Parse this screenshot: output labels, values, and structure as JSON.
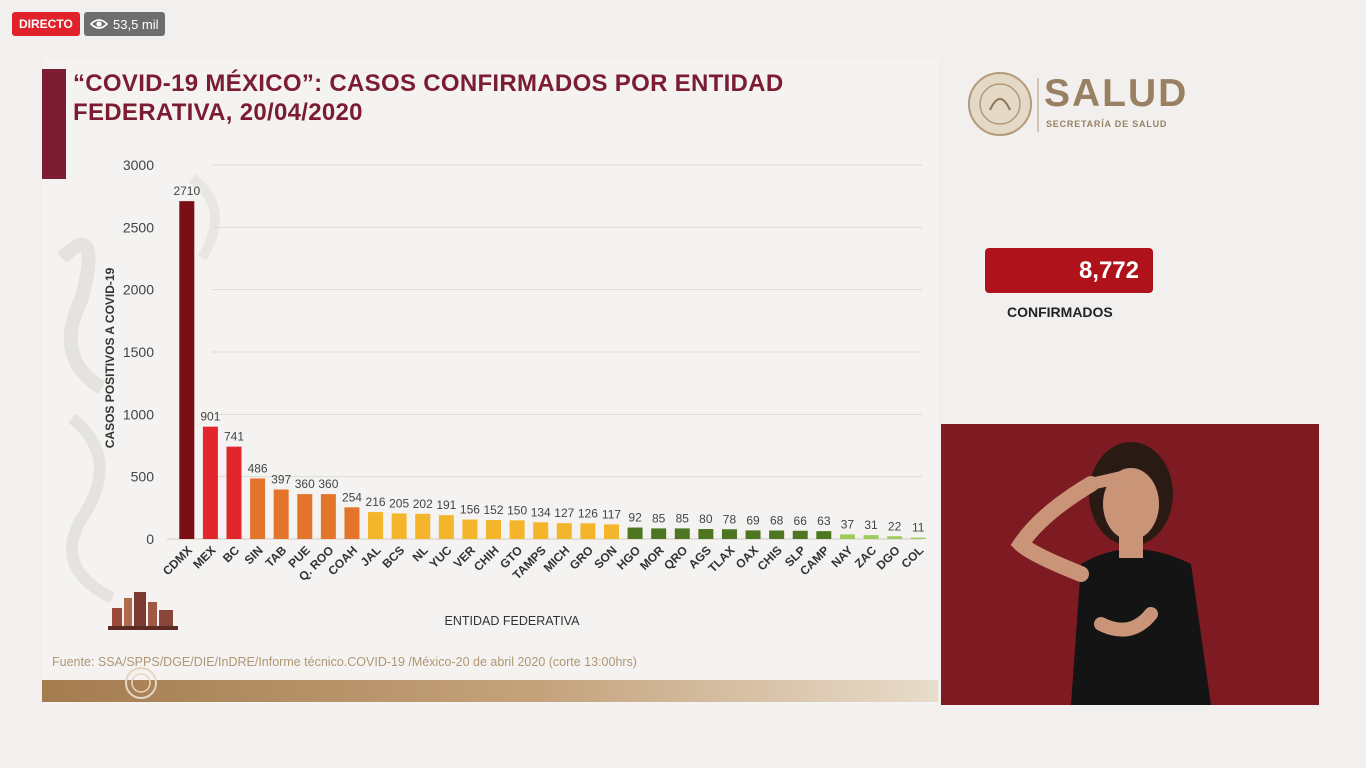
{
  "live": {
    "badge": "DIRECTO",
    "viewers": "53,5 mil"
  },
  "slide": {
    "title_line1": "“COVID-19 MÉXICO”: CASOS CONFIRMADOS POR ENTIDAD",
    "title_line2": "FEDERATIVA, 20/04/2020",
    "source": "Fuente: SSA/SPPS/DGE/DIE/InDRE/Informe técnico.COVID-19 /México-20 de abril 2020 (corte 13:00hrs)"
  },
  "logo": {
    "name": "SALUD",
    "subtitle": "SECRETARÍA DE SALUD"
  },
  "summary": {
    "total": "8,772",
    "label": "CONFIRMADOS"
  },
  "chart_data": {
    "type": "bar",
    "xlabel": "ENTIDAD FEDERATIVA",
    "ylabel": "CASOS POSITIVOS A COVID-19",
    "ylim": [
      0,
      3000
    ],
    "yticks": [
      0,
      500,
      1000,
      1500,
      2000,
      2500,
      3000
    ],
    "grid": true,
    "categories": [
      "CDMX",
      "MEX",
      "BC",
      "SIN",
      "TAB",
      "PUE",
      "Q. ROO",
      "COAH",
      "JAL",
      "BCS",
      "NL",
      "YUC",
      "VER",
      "CHIH",
      "GTO",
      "TAMPS",
      "MICH",
      "GRO",
      "SON",
      "HGO",
      "MOR",
      "QRO",
      "AGS",
      "TLAX",
      "OAX",
      "CHIS",
      "SLP",
      "CAMP",
      "NAY",
      "ZAC",
      "DGO",
      "COL"
    ],
    "values": [
      2710,
      901,
      741,
      486,
      397,
      360,
      360,
      254,
      216,
      205,
      202,
      191,
      156,
      152,
      150,
      134,
      127,
      126,
      117,
      92,
      85,
      85,
      80,
      78,
      69,
      68,
      66,
      63,
      37,
      31,
      22,
      11
    ],
    "colors": [
      "#7a0f16",
      "#e2262c",
      "#e2262c",
      "#e2742c",
      "#e2742c",
      "#e2742c",
      "#e2742c",
      "#e2742c",
      "#f4b52a",
      "#f4b52a",
      "#f4b52a",
      "#f4b52a",
      "#f4b52a",
      "#f4b52a",
      "#f4b52a",
      "#f4b52a",
      "#f4b52a",
      "#f4b52a",
      "#f4b52a",
      "#4e7520",
      "#4e7520",
      "#4e7520",
      "#4e7520",
      "#4e7520",
      "#4e7520",
      "#4e7520",
      "#4e7520",
      "#4e7520",
      "#9dcc5a",
      "#9dcc5a",
      "#9dcc5a",
      "#9dcc5a"
    ]
  }
}
